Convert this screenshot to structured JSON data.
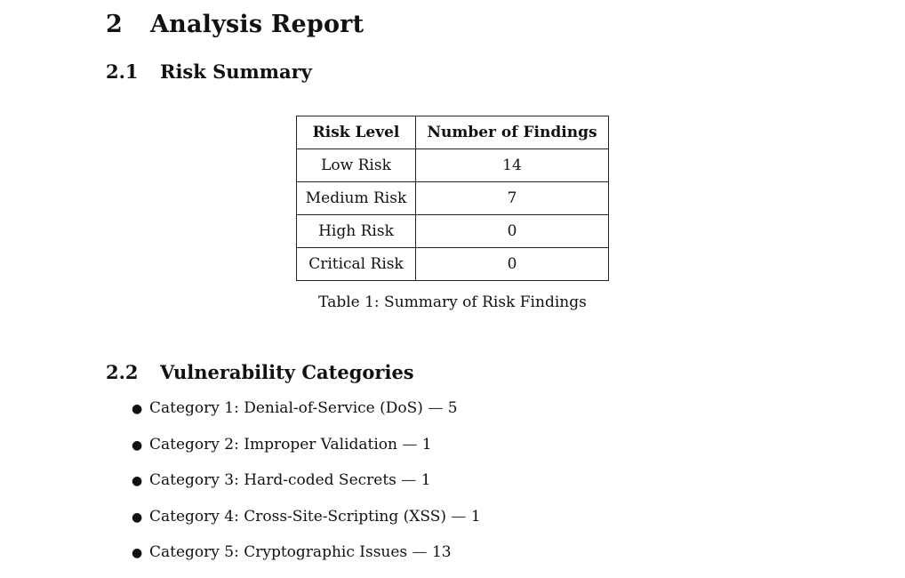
{
  "section": {
    "number": "2",
    "title": "Analysis Report"
  },
  "risk_summary": {
    "number": "2.1",
    "title": "Risk Summary",
    "table": {
      "headers": [
        "Risk Level",
        "Number of Findings"
      ],
      "rows": [
        [
          "Low Risk",
          "14"
        ],
        [
          "Medium Risk",
          "7"
        ],
        [
          "High Risk",
          "0"
        ],
        [
          "Critical Risk",
          "0"
        ]
      ]
    },
    "caption": "Table 1: Summary of Risk Findings"
  },
  "vulnerability_categories": {
    "number": "2.2",
    "title": "Vulnerability Categories",
    "items": [
      {
        "label": "Category 1: Denial-of-Service (DoS)",
        "count": "5"
      },
      {
        "label": "Category 2: Improper Validation",
        "count": "1"
      },
      {
        "label": "Category 3: Hard-coded Secrets",
        "count": "1"
      },
      {
        "label": "Category 4: Cross-Site-Scripting (XSS)",
        "count": "1"
      },
      {
        "label": "Category 5: Cryptographic Issues",
        "count": "13"
      }
    ]
  }
}
